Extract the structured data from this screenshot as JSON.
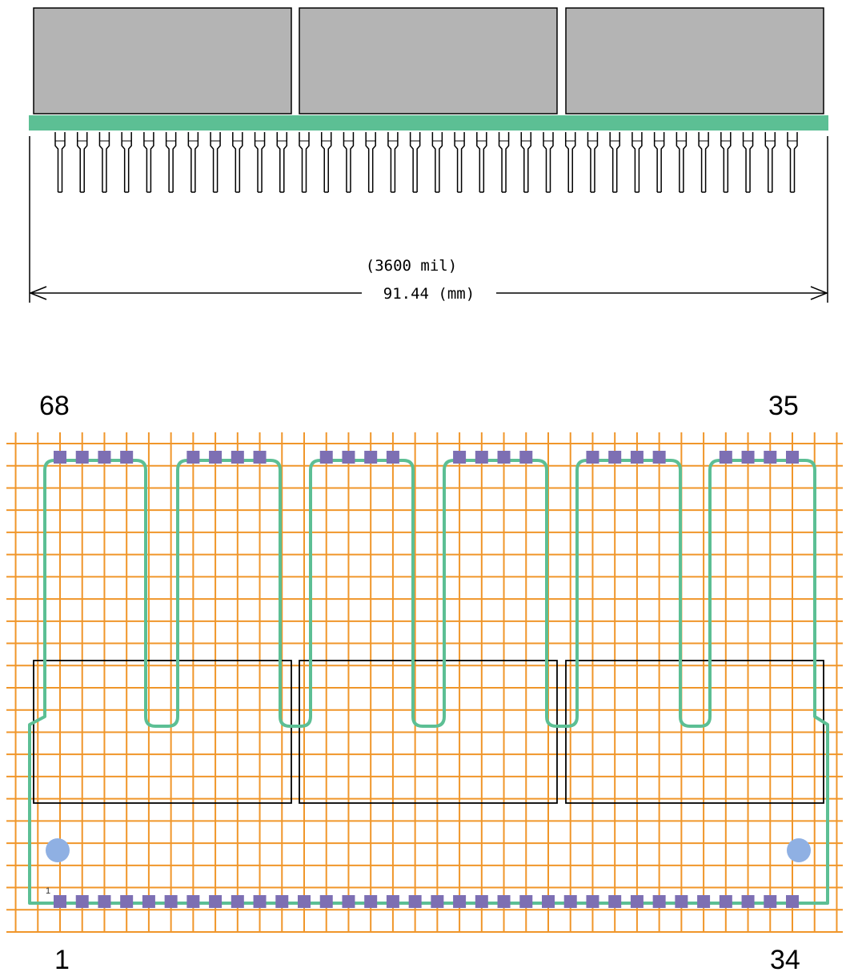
{
  "side_view": {
    "dimension_mil": "(3600 mil)",
    "dimension_mm": "91.44 (mm)",
    "body_count": 3,
    "lead_count": 34
  },
  "footprint": {
    "pin_labels": {
      "top_left": "68",
      "top_right": "35",
      "bottom_left": "1",
      "bottom_right": "34"
    },
    "pin1_marker": "1",
    "pins_per_row": 34,
    "top_pad_groups": 6,
    "pads_per_group": 4,
    "mounting_holes": 2
  },
  "colors": {
    "body_fill": "#b4b4b4",
    "board_edge": "#5cbf94",
    "grid_line": "#f0962a",
    "pad": "#7d6fb3",
    "hole": "#8fb0e3",
    "outline": "#000000"
  }
}
